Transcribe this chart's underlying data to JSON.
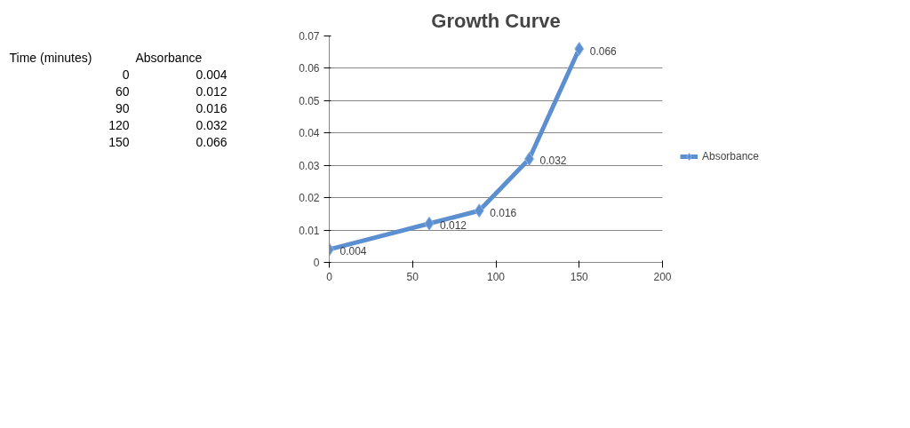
{
  "chart_data": {
    "type": "line",
    "title": "Growth Curve",
    "annotations": [
      "Time (minutes)",
      "Absorbance",
      "0",
      "0.004",
      "60",
      "0.012",
      "90",
      "0.016",
      "120",
      "0.032",
      "150",
      "0.066"
    ],
    "x": [
      0,
      60,
      90,
      120,
      150
    ],
    "series": [
      {
        "name": "Absorbance",
        "color": "#5b8fd0",
        "values": [
          0.004,
          0.012,
          0.016,
          0.032,
          0.066
        ]
      }
    ],
    "xlim": [
      0,
      200
    ],
    "xticks": [
      0,
      50,
      100,
      150,
      200
    ],
    "ylim": [
      0,
      0.07
    ],
    "yticks": [
      0,
      0.01,
      0.02,
      0.03,
      0.04,
      0.05,
      0.06,
      0.07
    ],
    "grid": "y",
    "legend": "right",
    "marker": "diamond",
    "line_style": "solid",
    "data_labels": true
  }
}
